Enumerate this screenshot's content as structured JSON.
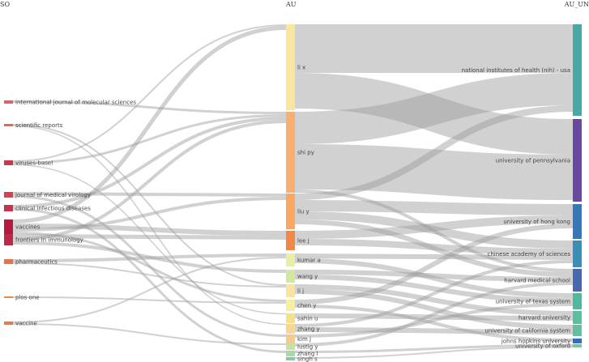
{
  "headers": {
    "so": "SO",
    "au": "AU",
    "au_un": "AU_UN"
  },
  "so_nodes": [
    {
      "id": "so0",
      "label": "international journal of molecular sciences",
      "color": "#e0606a"
    },
    {
      "id": "so1",
      "label": "scientific reports",
      "color": "#e86a4a"
    },
    {
      "id": "so2",
      "label": "viruses-basel",
      "color": "#c8384a"
    },
    {
      "id": "so3",
      "label": "journal of medical virology",
      "color": "#d84050"
    },
    {
      "id": "so4",
      "label": "clinical infectious diseases",
      "color": "#cc3050"
    },
    {
      "id": "so5",
      "label": "vaccines",
      "color": "#b81840"
    },
    {
      "id": "so6",
      "label": "frontiers in immunology",
      "color": "#c02848"
    },
    {
      "id": "so7",
      "label": "pharmaceutics",
      "color": "#e8704a"
    },
    {
      "id": "so8",
      "label": "plos one",
      "color": "#f08840"
    },
    {
      "id": "so9",
      "label": "vaccine",
      "color": "#e87850"
    }
  ],
  "au_nodes": [
    {
      "id": "au0",
      "label": "li x",
      "color": "#fbe6a0"
    },
    {
      "id": "au1",
      "label": "shi py",
      "color": "#f8b070"
    },
    {
      "id": "au2",
      "label": "liu y",
      "color": "#f8a860"
    },
    {
      "id": "au3",
      "label": "lee j",
      "color": "#f08848"
    },
    {
      "id": "au4",
      "label": "kumar a",
      "color": "#e8f0a8"
    },
    {
      "id": "au5",
      "label": "wang y",
      "color": "#d0e8a0"
    },
    {
      "id": "au6",
      "label": "li j",
      "color": "#fce4a0"
    },
    {
      "id": "au7",
      "label": "chen y",
      "color": "#f4f0a0"
    },
    {
      "id": "au8",
      "label": "sahin u",
      "color": "#f8e088"
    },
    {
      "id": "au9",
      "label": "zhang y",
      "color": "#f8d890"
    },
    {
      "id": "au10",
      "label": "kim j",
      "color": "#f8c890"
    },
    {
      "id": "au11",
      "label": "lustig y",
      "color": "#c8e0a0"
    },
    {
      "id": "au12",
      "label": "zhang l",
      "color": "#a8d8a8"
    },
    {
      "id": "au13",
      "label": "singh s",
      "color": "#88c8a8"
    }
  ],
  "un_nodes": [
    {
      "id": "un0",
      "label": "national institutes of health (nih) - usa",
      "color": "#48a8a8"
    },
    {
      "id": "un1",
      "label": "university of pennsylvania",
      "color": "#6848a0"
    },
    {
      "id": "un2",
      "label": "university of hong kong",
      "color": "#3878b8"
    },
    {
      "id": "un3",
      "label": "chinese academy of sciences",
      "color": "#3890b8"
    },
    {
      "id": "un4",
      "label": "harvard medical school",
      "color": "#4868b0"
    },
    {
      "id": "un5",
      "label": "university of texas system",
      "color": "#50b8a0"
    },
    {
      "id": "un6",
      "label": "harvard university",
      "color": "#58c0a0"
    },
    {
      "id": "un7",
      "label": "university of california system",
      "color": "#60c0a0"
    },
    {
      "id": "un8",
      "label": "johns hopkins university",
      "color": "#3070c0"
    },
    {
      "id": "un9",
      "label": "university of oxford",
      "color": "#70c8a8"
    }
  ]
}
